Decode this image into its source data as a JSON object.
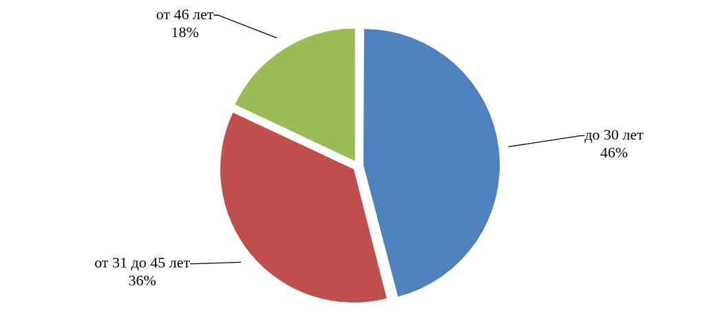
{
  "chart_data": {
    "type": "pie",
    "categories": [
      "до 30 лет",
      "от 31 до 45 лет",
      "от 46 лет"
    ],
    "values": [
      46,
      36,
      18
    ],
    "value_labels": [
      "46%",
      "36%",
      "18%"
    ],
    "colors": [
      "#4f81bd",
      "#c0504d",
      "#9bbb59"
    ],
    "legend": false
  }
}
